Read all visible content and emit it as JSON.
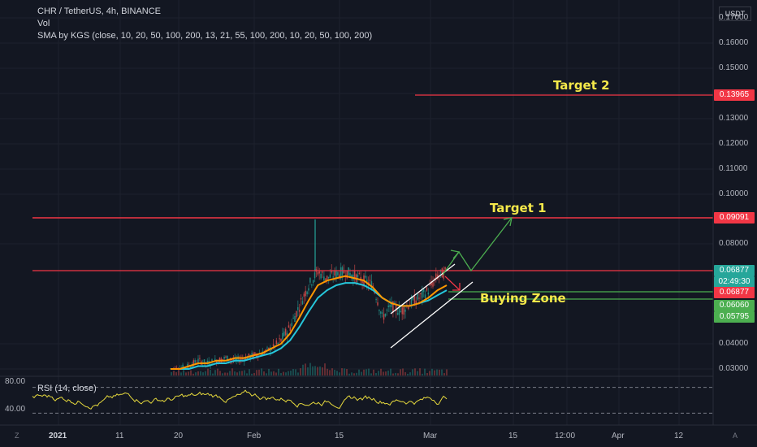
{
  "header": {
    "symbol": "CHR / TetherUS, 4h, BINANCE",
    "vol_label": "Vol",
    "sma_label": "SMA by KGS (close, 10, 20, 50, 100, 200, 13, 21, 55, 100, 200, 10, 20, 50, 100, 200)",
    "currency": "USDT"
  },
  "rsi": {
    "label": "RSI (14, close)",
    "ticks": [
      "80.00",
      "40.00"
    ]
  },
  "annotations": {
    "target2": "Target 2",
    "target1": "Target 1",
    "buying_zone": "Buying Zone"
  },
  "price_tags": {
    "target2": "0.13965",
    "target1": "0.09091",
    "current": "0.06877",
    "countdown": "02:49:30",
    "resistance": "0.06877",
    "zone_top": "0.06060",
    "zone_bottom": "0.05795"
  },
  "bottom": {
    "left": "Z",
    "right": "A"
  },
  "colors": {
    "background": "#131722",
    "red_line": "#f23645",
    "green_line": "#4caf50",
    "current_tag": "#26a69a",
    "annotation": "#f5e94a",
    "sma_fast": "#ff9800",
    "sma_slow": "#26c6da",
    "rsi_line": "#e6d93d"
  },
  "chart_data": {
    "type": "line",
    "y_axis_ticks": [
      "0.17000",
      "0.16000",
      "0.15000",
      "0.14000",
      "0.13000",
      "0.12000",
      "0.11000",
      "0.10000",
      "0.08000",
      "0.04000",
      "0.03000"
    ],
    "x_axis_ticks": [
      "2021",
      "11",
      "20",
      "Feb",
      "15",
      "Mar",
      "15",
      "12:00",
      "Apr",
      "12"
    ],
    "horizontal_levels": [
      0.13965,
      0.09091,
      0.06877,
      0.0606,
      0.05795
    ],
    "price_path": [
      0.03,
      0.03,
      0.031,
      0.033,
      0.032,
      0.033,
      0.034,
      0.033,
      0.034,
      0.035,
      0.036,
      0.038,
      0.041,
      0.045,
      0.052,
      0.06,
      0.066,
      0.063,
      0.065,
      0.066,
      0.064,
      0.062,
      0.06,
      0.048,
      0.052,
      0.05,
      0.053,
      0.055,
      0.058,
      0.064,
      0.066
    ],
    "sma_fast": [
      0.029,
      0.03,
      0.031,
      0.032,
      0.032,
      0.033,
      0.033,
      0.034,
      0.034,
      0.035,
      0.036,
      0.038,
      0.04,
      0.043,
      0.048,
      0.054,
      0.06,
      0.062,
      0.063,
      0.064,
      0.063,
      0.062,
      0.059,
      0.055,
      0.053,
      0.052,
      0.052,
      0.053,
      0.055,
      0.058,
      0.06
    ],
    "sma_slow": [
      0.029,
      0.029,
      0.03,
      0.031,
      0.031,
      0.032,
      0.032,
      0.033,
      0.033,
      0.034,
      0.035,
      0.036,
      0.038,
      0.041,
      0.045,
      0.05,
      0.055,
      0.058,
      0.06,
      0.061,
      0.061,
      0.06,
      0.058,
      0.055,
      0.053,
      0.052,
      0.052,
      0.053,
      0.054,
      0.056,
      0.058
    ],
    "rsi_range": [
      0,
      100
    ]
  }
}
